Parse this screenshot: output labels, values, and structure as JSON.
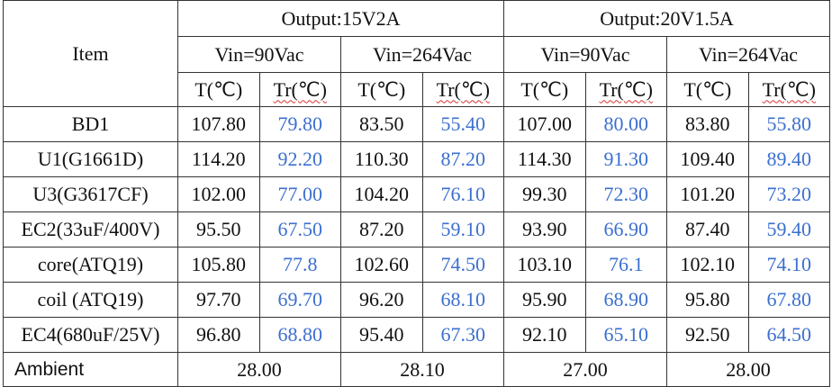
{
  "table": {
    "item": "Item",
    "outputs": [
      "Output:15V2A",
      "Output:20V1.5A"
    ],
    "vins": [
      "Vin=90Vac",
      "Vin=264Vac",
      "Vin=90Vac",
      "Vin=264Vac"
    ],
    "subcols": [
      "T(℃)",
      "Tr(℃)",
      "T(℃)",
      "Tr(℃)",
      "T(℃)",
      "Tr(℃)",
      "T(℃)",
      "Tr(℃)"
    ],
    "rows": [
      {
        "label": "BD1",
        "values": [
          "107.80",
          "79.80",
          "83.50",
          "55.40",
          "107.00",
          "80.00",
          "83.80",
          "55.80"
        ]
      },
      {
        "label": "U1(G1661D)",
        "values": [
          "114.20",
          "92.20",
          "110.30",
          "87.20",
          "114.30",
          "91.30",
          "109.40",
          "89.40"
        ]
      },
      {
        "label": "U3(G3617CF)",
        "values": [
          "102.00",
          "77.00",
          "104.20",
          "76.10",
          "99.30",
          "72.30",
          "101.20",
          "73.20"
        ]
      },
      {
        "label": "EC2(33uF/400V)",
        "values": [
          "95.50",
          "67.50",
          "87.20",
          "59.10",
          "93.90",
          "66.90",
          "87.40",
          "59.40"
        ]
      },
      {
        "label": "core(ATQ19)",
        "values": [
          "105.80",
          "77.8",
          "102.60",
          "74.50",
          "103.10",
          "76.1",
          "102.10",
          "74.10"
        ]
      },
      {
        "label": "coil (ATQ19)",
        "values": [
          "97.70",
          "69.70",
          "96.20",
          "68.10",
          "95.90",
          "68.90",
          "95.80",
          "67.80"
        ]
      },
      {
        "label": "EC4(680uF/25V)",
        "values": [
          "96.80",
          "68.80",
          "95.40",
          "67.30",
          "92.10",
          "65.10",
          "92.50",
          "64.50"
        ]
      }
    ],
    "ambient": {
      "label": "Ambient",
      "values": [
        "28.00",
        "28.10",
        "27.00",
        "28.00"
      ]
    }
  }
}
